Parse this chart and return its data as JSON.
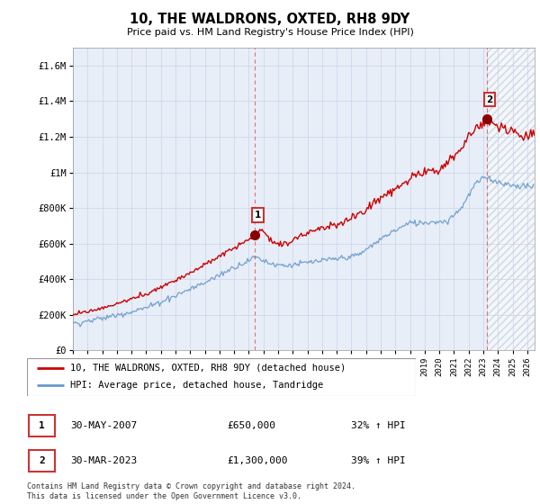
{
  "title": "10, THE WALDRONS, OXTED, RH8 9DY",
  "subtitle": "Price paid vs. HM Land Registry's House Price Index (HPI)",
  "ylim": [
    0,
    1700000
  ],
  "yticks": [
    0,
    200000,
    400000,
    600000,
    800000,
    1000000,
    1200000,
    1400000,
    1600000
  ],
  "ytick_labels": [
    "£0",
    "£200K",
    "£400K",
    "£600K",
    "£800K",
    "£1M",
    "£1.2M",
    "£1.4M",
    "£1.6M"
  ],
  "xlim_start": 1995.0,
  "xlim_end": 2026.5,
  "legend_line1": "10, THE WALDRONS, OXTED, RH8 9DY (detached house)",
  "legend_line2": "HPI: Average price, detached house, Tandridge",
  "annotation1_label": "1",
  "annotation1_date": "30-MAY-2007",
  "annotation1_price": "£650,000",
  "annotation1_hpi": "32% ↑ HPI",
  "annotation2_label": "2",
  "annotation2_date": "30-MAR-2023",
  "annotation2_price": "£1,300,000",
  "annotation2_hpi": "39% ↑ HPI",
  "footnote": "Contains HM Land Registry data © Crown copyright and database right 2024.\nThis data is licensed under the Open Government Licence v3.0.",
  "grid_color": "#c8d4e8",
  "bg_color": "#e8eef8",
  "plot_bg": "#ffffff",
  "line_color_red": "#cc0000",
  "line_color_blue": "#6699cc",
  "vline_color": "#dd6666",
  "sale1_x": 2007.41,
  "sale1_y": 650000,
  "sale2_x": 2023.24,
  "sale2_y": 1300000,
  "hatch_start_x": 2023.24,
  "hatch_color": "#aabbcc"
}
